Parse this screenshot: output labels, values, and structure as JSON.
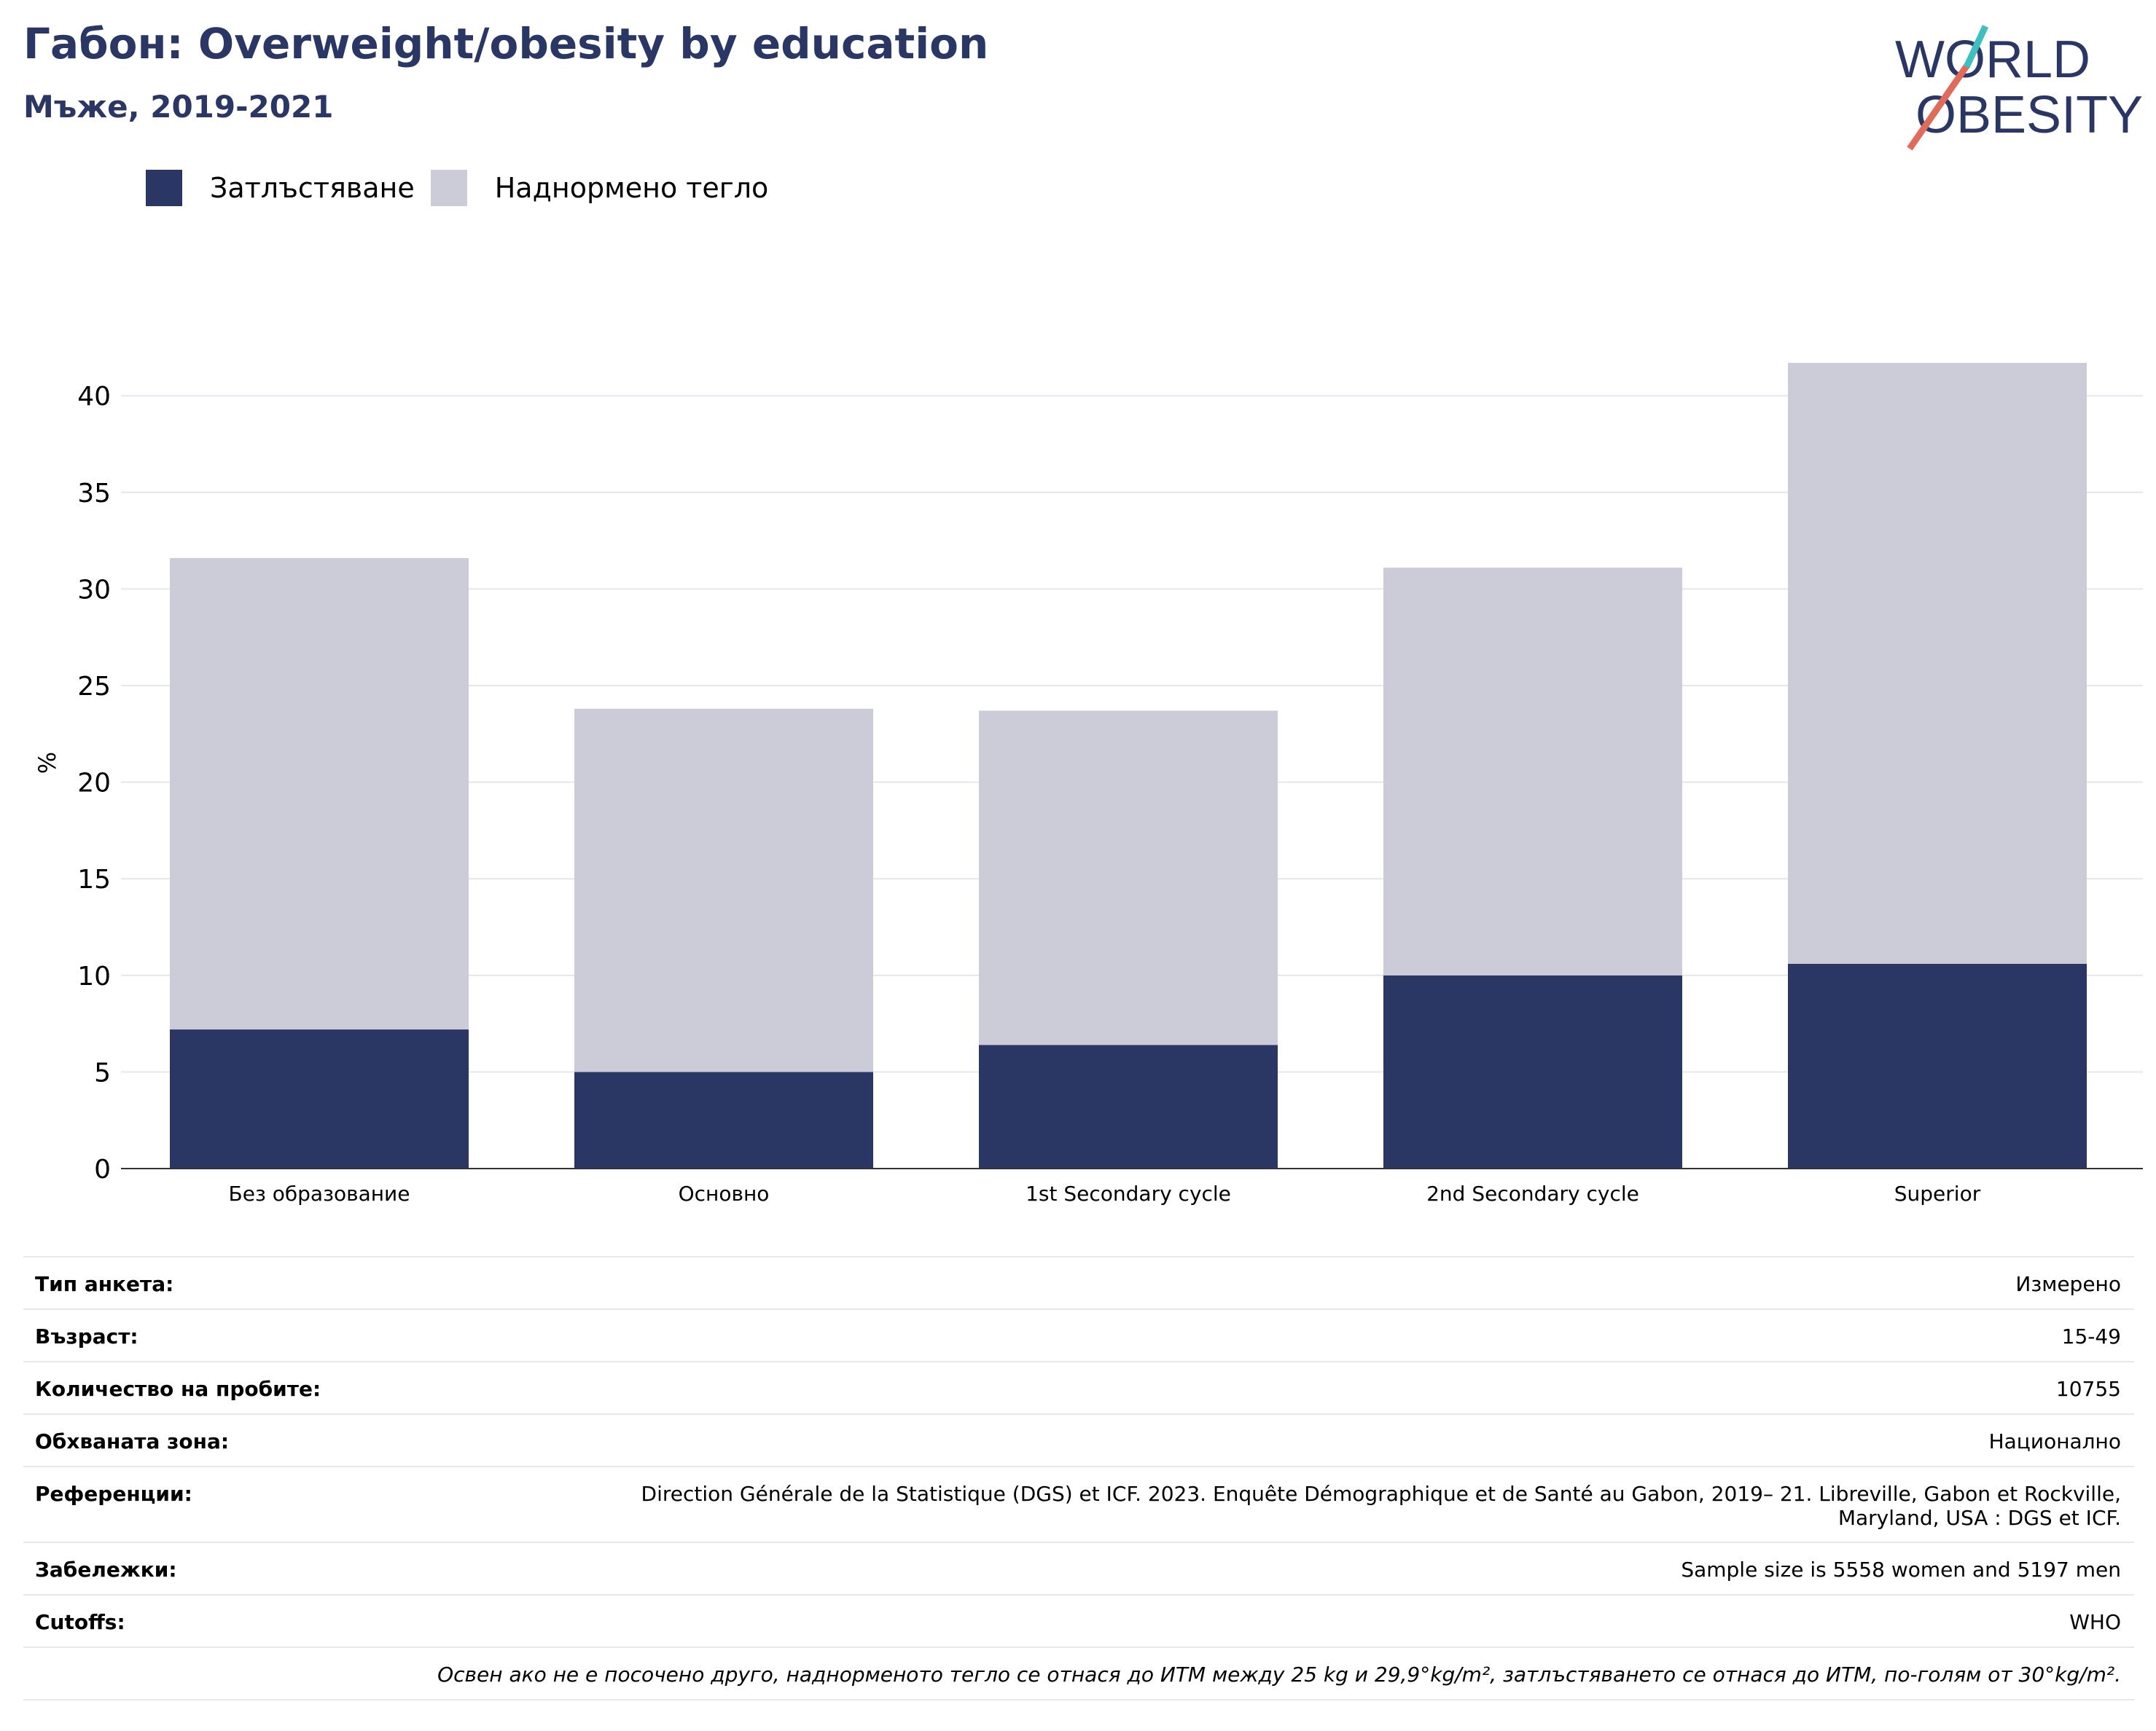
{
  "title": "Габон: Overweight/obesity by education",
  "subtitle": "Мъже, 2019-2021",
  "logo": {
    "line1": "WORLD",
    "line2": "OBESITY"
  },
  "colors": {
    "obesity": "#2a3765",
    "overweight": "#cbccd8",
    "accent": "#2a3765",
    "logo_slash_red": "#e06b5a",
    "logo_slash_teal": "#3fbfbf"
  },
  "legend": [
    {
      "label": "Затлъстяване",
      "color": "#2a3765"
    },
    {
      "label": "Наднормено тегло",
      "color": "#cbccd8"
    }
  ],
  "chart_data": {
    "type": "bar",
    "stacked": true,
    "categories": [
      "Без образование",
      "Основно",
      "1st Secondary cycle",
      "2nd Secondary cycle",
      "Superior"
    ],
    "series": [
      {
        "name": "Затлъстяване",
        "values": [
          7.2,
          5.0,
          6.4,
          10.0,
          10.6
        ]
      },
      {
        "name": "Наднормено тегло",
        "values": [
          24.4,
          18.8,
          17.3,
          21.1,
          31.1
        ]
      }
    ],
    "ylabel": "%",
    "xlabel": "",
    "ylim": [
      0,
      42
    ],
    "yticks": [
      0,
      5,
      10,
      15,
      20,
      25,
      30,
      35,
      40
    ],
    "grid": true
  },
  "info": [
    {
      "key": "Тип анкета:",
      "value": "Измерено"
    },
    {
      "key": "Възраст:",
      "value": "15-49"
    },
    {
      "key": "Количество на пробите:",
      "value": "10755"
    },
    {
      "key": "Обхваната зона:",
      "value": "Национално"
    },
    {
      "key": "Референции:",
      "value": "Direction Générale de la Statistique (DGS) et ICF. 2023. Enquête Démographique et de Santé au Gabon, 2019– 21. Libreville, Gabon et Rockville, Maryland, USA : DGS et ICF."
    },
    {
      "key": "Забележки:",
      "value": "Sample size is 5558 women and 5197 men"
    },
    {
      "key": "Cutoffs:",
      "value": "WHO"
    }
  ],
  "footnote": "Освен ако не е посочено друго, наднорменото тегло се отнася до ИТМ между 25 kg и 29,9°kg/m², затлъстяването се отнася до ИТМ, по-голям от 30°kg/m²."
}
